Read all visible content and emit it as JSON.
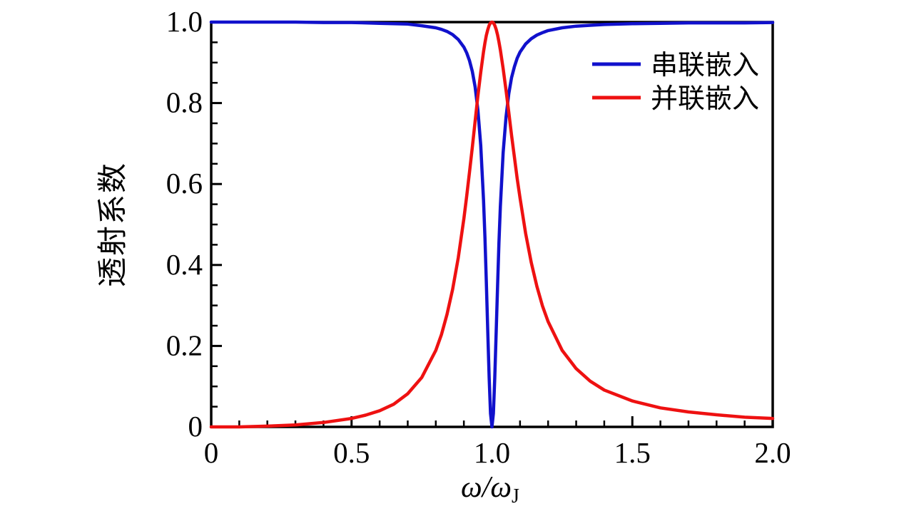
{
  "figure": {
    "background_color": "#ffffff",
    "frame_color": "#000000",
    "accent_colors": {
      "series_blue": "#1111cc",
      "parallel_red": "#ee1111"
    }
  },
  "chart_data": {
    "type": "line",
    "title": "",
    "xlabel": "ω/ω_J",
    "xlabel_main": "ω/ω",
    "xlabel_sub": "J",
    "ylabel": "透射系数",
    "xlim": [
      0,
      2
    ],
    "ylim": [
      0,
      1
    ],
    "grid": false,
    "legend_position": "upper right",
    "x_major_ticks": [
      0,
      0.5,
      1.0,
      1.5,
      2.0
    ],
    "x_tick_labels": [
      "0",
      "0.5",
      "1.0",
      "1.5",
      "2.0"
    ],
    "x_minor_step": 0.1,
    "y_major_ticks": [
      0,
      0.2,
      0.4,
      0.6,
      0.8,
      1.0
    ],
    "y_tick_labels": [
      "0",
      "0.2",
      "0.4",
      "0.6",
      "0.8",
      "1.0"
    ],
    "y_minor_step": 0.05,
    "x": [
      0,
      0.05,
      0.1,
      0.2,
      0.3,
      0.4,
      0.5,
      0.55,
      0.6,
      0.65,
      0.7,
      0.75,
      0.8,
      0.82,
      0.84,
      0.86,
      0.88,
      0.9,
      0.91,
      0.92,
      0.93,
      0.94,
      0.95,
      0.96,
      0.97,
      0.975,
      0.98,
      0.985,
      0.99,
      0.995,
      1.0,
      1.005,
      1.01,
      1.015,
      1.02,
      1.025,
      1.03,
      1.04,
      1.05,
      1.06,
      1.07,
      1.08,
      1.09,
      1.1,
      1.12,
      1.14,
      1.16,
      1.18,
      1.2,
      1.25,
      1.3,
      1.35,
      1.4,
      1.5,
      1.6,
      1.7,
      1.8,
      1.9,
      2.0
    ],
    "series": [
      {
        "name": "串联嵌入",
        "color": "#1111cc",
        "values": [
          1.0,
          1.0,
          1.0,
          1.0,
          1.0,
          0.999,
          0.999,
          0.998,
          0.997,
          0.996,
          0.995,
          0.991,
          0.986,
          0.982,
          0.977,
          0.969,
          0.957,
          0.938,
          0.924,
          0.905,
          0.878,
          0.84,
          0.783,
          0.695,
          0.56,
          0.467,
          0.359,
          0.238,
          0.121,
          0.033,
          0.0,
          0.033,
          0.119,
          0.233,
          0.349,
          0.455,
          0.545,
          0.678,
          0.765,
          0.823,
          0.863,
          0.89,
          0.911,
          0.926,
          0.946,
          0.959,
          0.968,
          0.974,
          0.979,
          0.986,
          0.99,
          0.992,
          0.994,
          0.996,
          0.997,
          0.998,
          0.998,
          0.998,
          0.999
        ]
      },
      {
        "name": "并联嵌入",
        "color": "#ee1111",
        "values": [
          0.0,
          0.0,
          0.0,
          0.002,
          0.005,
          0.011,
          0.021,
          0.029,
          0.04,
          0.056,
          0.082,
          0.122,
          0.189,
          0.228,
          0.278,
          0.34,
          0.418,
          0.515,
          0.57,
          0.629,
          0.691,
          0.755,
          0.818,
          0.876,
          0.927,
          0.949,
          0.967,
          0.981,
          0.992,
          0.998,
          1.0,
          0.998,
          0.992,
          0.982,
          0.968,
          0.951,
          0.931,
          0.885,
          0.832,
          0.777,
          0.72,
          0.666,
          0.613,
          0.565,
          0.478,
          0.406,
          0.347,
          0.299,
          0.26,
          0.189,
          0.144,
          0.113,
          0.091,
          0.064,
          0.047,
          0.037,
          0.03,
          0.024,
          0.021
        ]
      }
    ]
  }
}
